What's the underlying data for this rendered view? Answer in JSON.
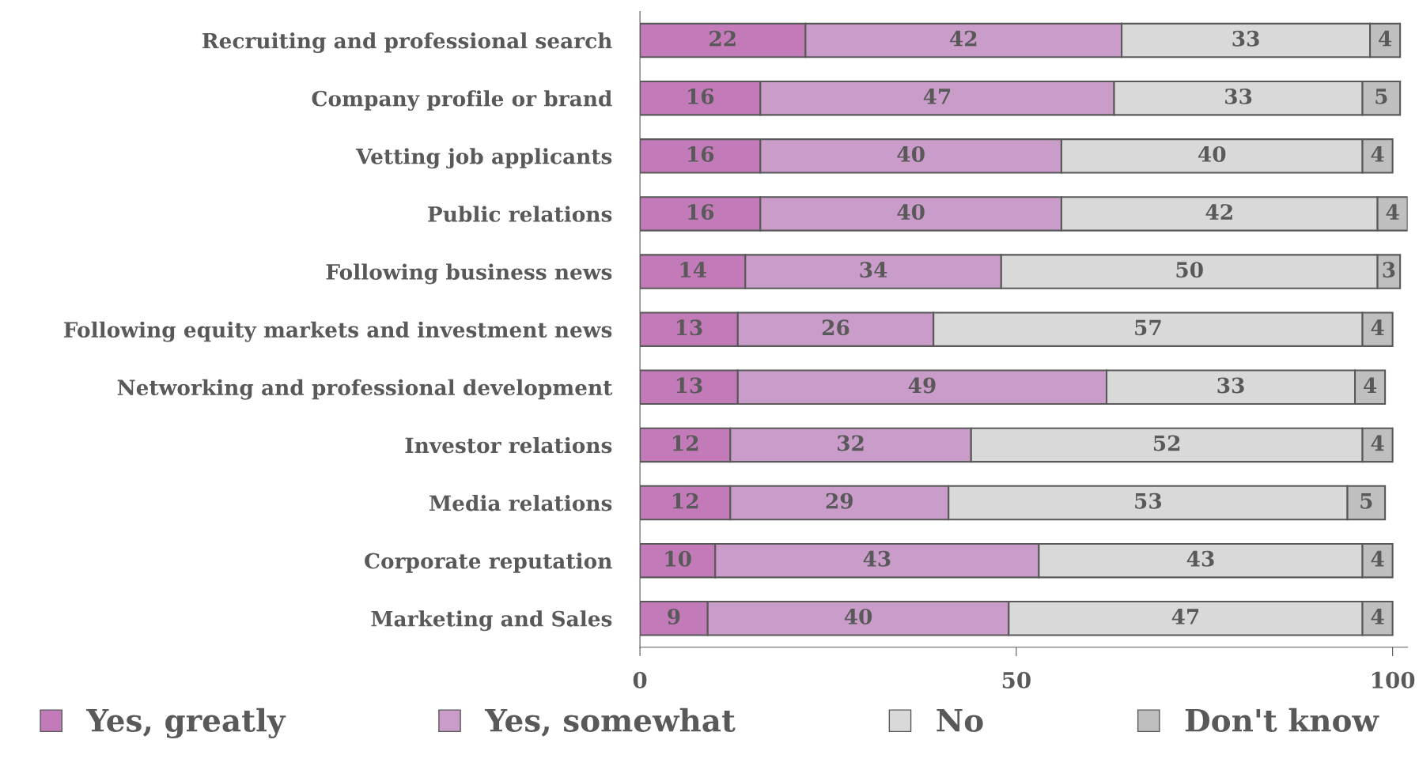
{
  "chart_data": {
    "type": "bar",
    "orientation": "horizontal",
    "stacked": true,
    "data_labels": true,
    "legend": "bottom",
    "grid": false,
    "categories": [
      "Recruiting and professional search",
      "Company profile or brand",
      "Vetting job applicants",
      "Public relations",
      "Following business news",
      "Following equity markets and investment news",
      "Networking and professional development",
      "Investor relations",
      "Media relations",
      "Corporate reputation",
      "Marketing and Sales"
    ],
    "series": [
      {
        "name": "Yes, greatly",
        "color": "#c27bb8",
        "values": [
          22,
          16,
          16,
          16,
          14,
          13,
          13,
          12,
          12,
          10,
          9
        ]
      },
      {
        "name": "Yes, somewhat",
        "color": "#c99cc9",
        "values": [
          42,
          47,
          40,
          40,
          34,
          26,
          49,
          32,
          29,
          43,
          40
        ]
      },
      {
        "name": "No",
        "color": "#d9d9d9",
        "values": [
          33,
          33,
          40,
          42,
          50,
          57,
          33,
          52,
          53,
          43,
          47
        ]
      },
      {
        "name": "Don't know",
        "color": "#bfbfbf",
        "values": [
          4,
          5,
          4,
          4,
          3,
          4,
          4,
          4,
          5,
          4,
          4
        ]
      }
    ],
    "xlim": [
      0,
      102
    ],
    "xticks": [
      0,
      50,
      100
    ]
  }
}
